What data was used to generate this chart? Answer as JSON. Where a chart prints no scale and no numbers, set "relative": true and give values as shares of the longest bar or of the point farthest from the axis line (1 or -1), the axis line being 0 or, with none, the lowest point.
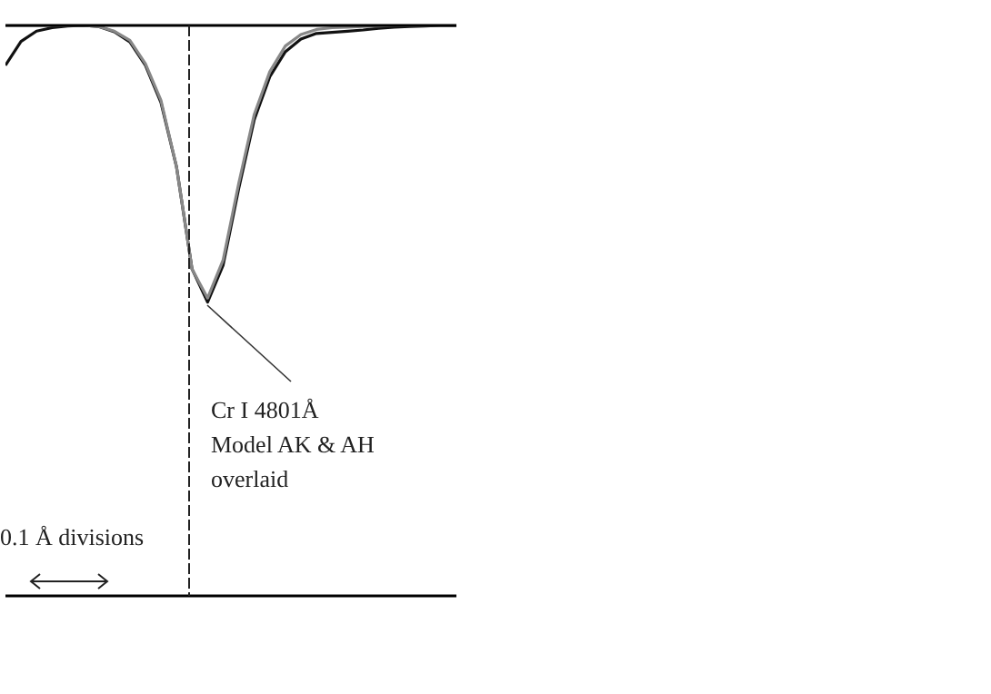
{
  "chart_data": {
    "type": "line",
    "relative": true,
    "categories": [
      null,
      null,
      null,
      null,
      null,
      null,
      null,
      null,
      null,
      null,
      null,
      null,
      null,
      null,
      null,
      null,
      null,
      null,
      null,
      null,
      null,
      null,
      null,
      null,
      null,
      null,
      null,
      null,
      null,
      null
    ],
    "marker": "none",
    "line_style": "solid",
    "series": [
      {
        "color": "#111111",
        "values": [
          0.93,
          0.972,
          0.99,
          0.996,
          0.999,
          1,
          0.998,
          0.989,
          0.971,
          0.93,
          0.865,
          0.752,
          0.573,
          0.515,
          0.58,
          0.714,
          0.835,
          0.91,
          0.954,
          0.976,
          0.986,
          0.988,
          0.99,
          0.992,
          0.995,
          0.997,
          0.998,
          0.999,
          1,
          1
        ]
      },
      {
        "color": "#888888",
        "values": [
          1,
          1,
          1,
          1,
          1,
          1,
          0.998,
          0.99,
          0.974,
          0.933,
          0.869,
          0.752,
          0.573,
          0.522,
          0.589,
          0.723,
          0.844,
          0.919,
          0.964,
          0.984,
          0.993,
          0.996,
          0.997,
          0.998,
          0.999,
          1,
          1,
          1,
          1,
          1
        ]
      }
    ],
    "annotations": [
      "Cr I 4801Å\nModel AK & AH\noverlaid",
      "0.1 Å divisions"
    ]
  }
}
